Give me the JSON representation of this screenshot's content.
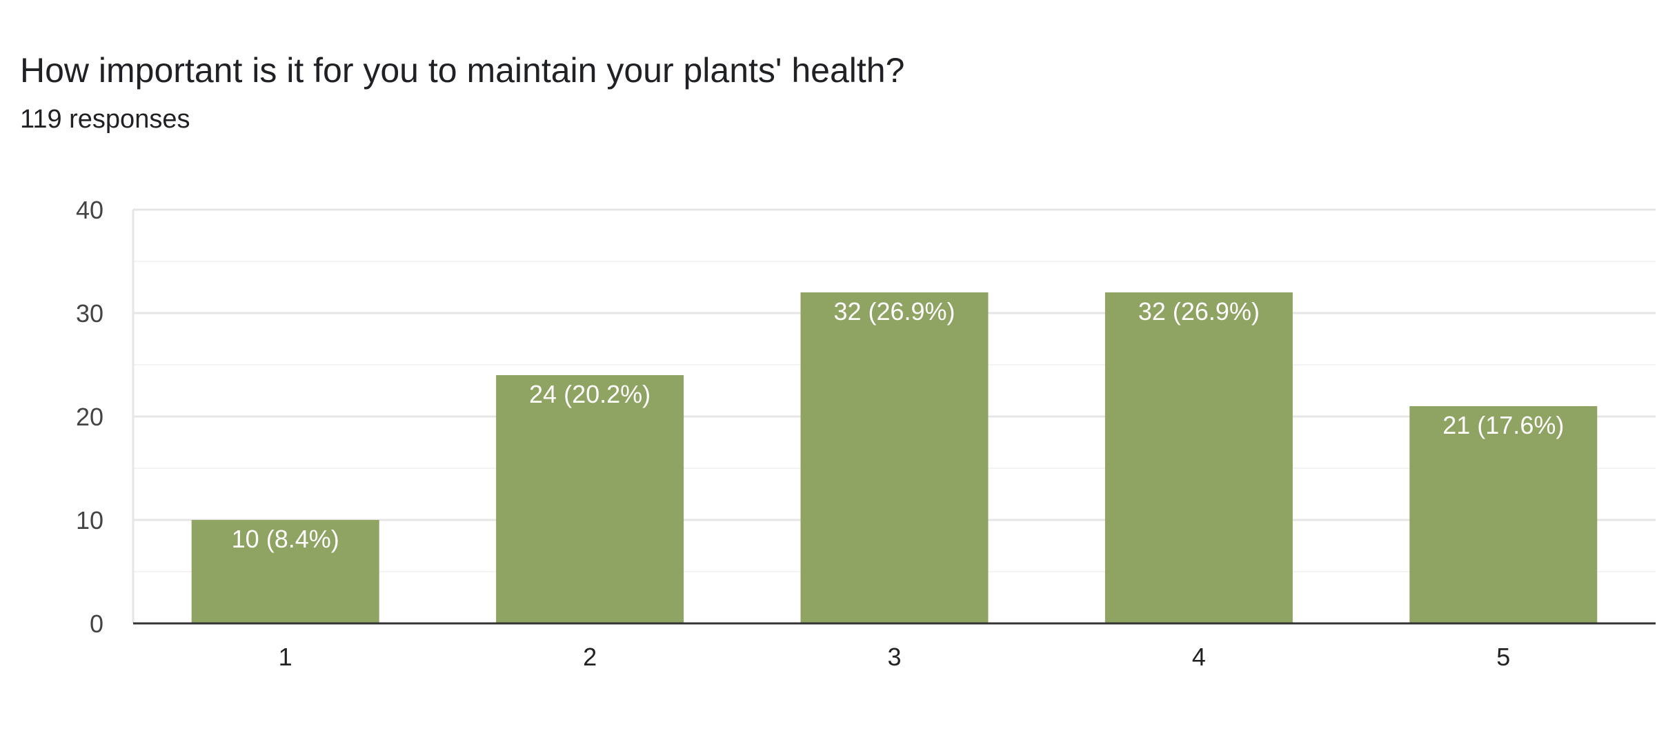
{
  "question": {
    "title": "How important is it for you to maintain your plants' health?",
    "responses": "119 responses"
  },
  "chart_data": {
    "type": "bar",
    "categories": [
      "1",
      "2",
      "3",
      "4",
      "5"
    ],
    "values": [
      10,
      24,
      32,
      32,
      21
    ],
    "data_labels": [
      "10 (8.4%)",
      "24 (20.2%)",
      "32 (26.9%)",
      "32 (26.9%)",
      "21 (17.6%)"
    ],
    "yticks": [
      0,
      10,
      20,
      30,
      40
    ],
    "ylim": [
      0,
      40
    ],
    "grid": true,
    "bar_color": "#8fa362",
    "title": "",
    "xlabel": "",
    "ylabel": ""
  }
}
